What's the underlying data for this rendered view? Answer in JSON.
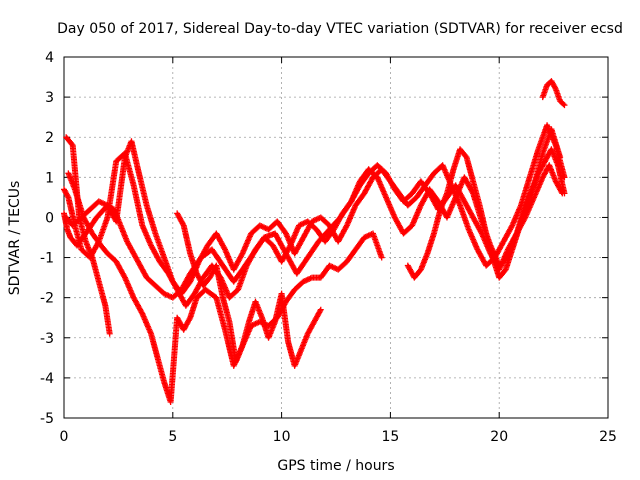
{
  "chart_data": {
    "type": "scatter",
    "title": "Day 050 of 2017, Sidereal Day-to-day VTEC variation (SDTVAR) for receiver ecsd",
    "xlabel": "GPS time / hours",
    "ylabel": "SDTVAR / TECUs",
    "xlim": [
      0,
      25
    ],
    "ylim": [
      -5,
      4
    ],
    "xticks": [
      0,
      5,
      10,
      15,
      20,
      25
    ],
    "yticks": [
      -5,
      -4,
      -3,
      -2,
      -1,
      0,
      1,
      2,
      3,
      4
    ],
    "grid": true,
    "marker": "plus",
    "color": "#ff0000",
    "series": [
      {
        "x": [
          0.0,
          0.15,
          0.3,
          0.6,
          1.0,
          1.5,
          2.0,
          2.3,
          2.6,
          2.9,
          3.2,
          3.5,
          3.8,
          4.2,
          4.6,
          5.0,
          5.4,
          5.8,
          6.3,
          6.8,
          7.3,
          7.8,
          8.2,
          8.7,
          9.2,
          9.7,
          10.2,
          10.7,
          11.2,
          11.7,
          12.2,
          12.7,
          13.2,
          13.6,
          14.0,
          14.4,
          14.8,
          15.2,
          15.6,
          16.0,
          16.4,
          16.8,
          17.2,
          17.6,
          18.0,
          18.4,
          18.8,
          19.2,
          19.6,
          20.0,
          20.4,
          20.8,
          21.2,
          21.6,
          22.0,
          22.3,
          22.6,
          22.9
        ],
        "y": [
          0.1,
          -0.3,
          -0.5,
          -0.7,
          -0.4,
          0.0,
          0.3,
          0.2,
          -0.2,
          -0.6,
          -0.9,
          -1.2,
          -1.5,
          -1.7,
          -1.9,
          -2.0,
          -1.8,
          -1.4,
          -1.0,
          -0.8,
          -1.2,
          -1.6,
          -1.3,
          -0.9,
          -0.5,
          -0.4,
          -0.9,
          -1.4,
          -1.0,
          -0.6,
          -0.3,
          0.0,
          0.4,
          0.8,
          1.1,
          1.3,
          1.1,
          0.7,
          0.4,
          0.6,
          0.9,
          0.6,
          0.2,
          0.5,
          0.8,
          0.4,
          0.0,
          -0.4,
          -0.9,
          -1.3,
          -0.8,
          -0.4,
          0.0,
          0.5,
          1.0,
          1.3,
          0.9,
          0.6
        ]
      },
      {
        "x": [
          0.0,
          0.2,
          0.5,
          0.8,
          1.2,
          1.6,
          2.0,
          2.4,
          2.8,
          3.2,
          3.6,
          4.0,
          4.4,
          4.8,
          5.2,
          5.6,
          6.0,
          6.4,
          6.8,
          7.2,
          7.6,
          8.0,
          8.4,
          8.8,
          9.2,
          9.6,
          10.0,
          10.4,
          10.8,
          11.2,
          11.6,
          12.0,
          12.4,
          12.8,
          13.2,
          13.6,
          14.0,
          14.4,
          14.8,
          15.2,
          15.6,
          16.0,
          16.4,
          16.8,
          17.2,
          17.6,
          18.0,
          18.4,
          18.8,
          19.2,
          19.6,
          20.0,
          20.4,
          20.8,
          21.2,
          21.6,
          22.0,
          22.4,
          22.8
        ],
        "y": [
          0.7,
          0.5,
          -0.2,
          -0.8,
          -1.0,
          -0.6,
          0.0,
          1.4,
          1.6,
          0.8,
          -0.2,
          -0.7,
          -1.1,
          -1.4,
          -1.8,
          -2.2,
          -1.9,
          -1.5,
          -1.2,
          -1.5,
          -2.0,
          -1.8,
          -1.2,
          -0.8,
          -0.5,
          -0.7,
          -1.1,
          -0.7,
          -0.2,
          -0.1,
          -0.3,
          -0.6,
          -0.3,
          0.1,
          0.4,
          0.9,
          1.2,
          1.0,
          0.5,
          0.0,
          -0.4,
          -0.2,
          0.3,
          0.7,
          0.4,
          0.0,
          0.5,
          1.0,
          0.6,
          -0.1,
          -0.7,
          -1.2,
          -1.0,
          -0.4,
          0.3,
          0.8,
          1.6,
          2.2,
          1.5
        ]
      },
      {
        "x": [
          0.1,
          0.4,
          0.8,
          1.2,
          1.6,
          2.0,
          2.4,
          2.8,
          3.1,
          3.4,
          3.8,
          4.2,
          4.6,
          5.0,
          5.4,
          5.8,
          6.2,
          6.6,
          7.0,
          7.4,
          7.8,
          8.2,
          8.6,
          9.0,
          9.4,
          9.8,
          10.2,
          10.6,
          11.0,
          11.4,
          11.8,
          12.2,
          12.6,
          13.0,
          13.4,
          13.8,
          14.2,
          14.6,
          15.0,
          15.4,
          15.8,
          16.2,
          16.6,
          17.0,
          17.4,
          17.8,
          18.2,
          18.6,
          19.0,
          19.4,
          19.8,
          20.2,
          20.6,
          21.0,
          21.4,
          21.8,
          22.2,
          22.6,
          23.0
        ],
        "y": [
          0.0,
          -0.2,
          0.0,
          0.2,
          0.4,
          0.3,
          -0.1,
          1.5,
          1.9,
          1.2,
          0.3,
          -0.4,
          -1.0,
          -1.6,
          -1.9,
          -1.6,
          -1.1,
          -0.7,
          -0.4,
          -0.8,
          -1.3,
          -0.9,
          -0.4,
          -0.2,
          -0.3,
          -0.1,
          -0.4,
          -0.9,
          -0.5,
          -0.1,
          0.0,
          -0.2,
          -0.6,
          -0.2,
          0.3,
          0.6,
          1.0,
          1.2,
          0.9,
          0.6,
          0.3,
          0.5,
          0.8,
          1.1,
          1.3,
          0.8,
          0.3,
          -0.3,
          -0.8,
          -1.2,
          -1.0,
          -0.6,
          -0.2,
          0.3,
          1.0,
          1.7,
          2.3,
          1.8,
          1.0
        ]
      },
      {
        "x": [
          0.2,
          0.5,
          0.9,
          1.3,
          1.7,
          2.0,
          2.4,
          2.8,
          3.2,
          3.6,
          4.0,
          4.3,
          4.6,
          4.9,
          5.2,
          5.5,
          5.8,
          6.1,
          6.5,
          7.0,
          7.4,
          7.8,
          8.2,
          8.6,
          9.0,
          9.4,
          9.8,
          10.2,
          10.6,
          11.0,
          11.4,
          11.8,
          12.2,
          12.6,
          13.0,
          13.4,
          13.8,
          14.2,
          14.6
        ],
        "y": [
          1.1,
          0.7,
          0.0,
          -0.4,
          -0.7,
          -0.9,
          -1.1,
          -1.5,
          -2.0,
          -2.4,
          -2.9,
          -3.5,
          -4.1,
          -4.6,
          -2.5,
          -2.8,
          -2.5,
          -2.0,
          -1.8,
          -2.0,
          -2.8,
          -3.7,
          -3.2,
          -2.7,
          -2.6,
          -2.7,
          -2.5,
          -2.1,
          -1.8,
          -1.6,
          -1.5,
          -1.5,
          -1.2,
          -1.3,
          -1.1,
          -0.8,
          -0.5,
          -0.4,
          -1.0
        ]
      },
      {
        "x": [
          0.1,
          0.4,
          0.7,
          1.0,
          1.3,
          1.6,
          1.9,
          2.1
        ],
        "y": [
          2.0,
          1.8,
          0.0,
          -0.6,
          -1.0,
          -1.6,
          -2.2,
          -2.9
        ]
      },
      {
        "x": [
          5.2,
          5.5,
          5.8,
          6.1,
          6.4,
          6.7,
          7.0,
          7.3,
          7.6,
          7.9,
          8.2,
          8.5,
          8.8,
          9.1,
          9.4,
          9.7,
          10.0,
          10.3,
          10.6,
          10.9,
          11.2,
          11.5,
          11.8
        ],
        "y": [
          0.1,
          -0.2,
          -0.9,
          -1.4,
          -1.7,
          -1.5,
          -1.2,
          -2.0,
          -2.6,
          -3.6,
          -3.2,
          -2.6,
          -2.1,
          -2.5,
          -3.0,
          -2.6,
          -1.9,
          -3.1,
          -3.7,
          -3.3,
          -2.9,
          -2.6,
          -2.3
        ]
      },
      {
        "x": [
          15.8,
          16.1,
          16.4,
          16.7,
          17.0,
          17.3,
          17.6,
          17.9,
          18.2,
          18.5,
          18.8,
          19.1,
          19.4,
          19.7,
          20.0,
          20.3,
          20.6,
          20.9,
          21.2,
          21.5,
          21.8,
          22.1,
          22.4,
          22.7,
          23.0
        ],
        "y": [
          -1.2,
          -1.5,
          -1.3,
          -0.9,
          -0.4,
          0.2,
          0.6,
          1.2,
          1.7,
          1.5,
          0.9,
          0.3,
          -0.4,
          -1.0,
          -1.5,
          -1.3,
          -0.8,
          -0.3,
          0.2,
          0.7,
          1.1,
          1.4,
          1.7,
          1.3,
          0.6
        ]
      },
      {
        "x": [
          22.0,
          22.2,
          22.4,
          22.6,
          22.8,
          23.0
        ],
        "y": [
          3.0,
          3.3,
          3.4,
          3.2,
          2.9,
          2.8
        ]
      }
    ]
  }
}
